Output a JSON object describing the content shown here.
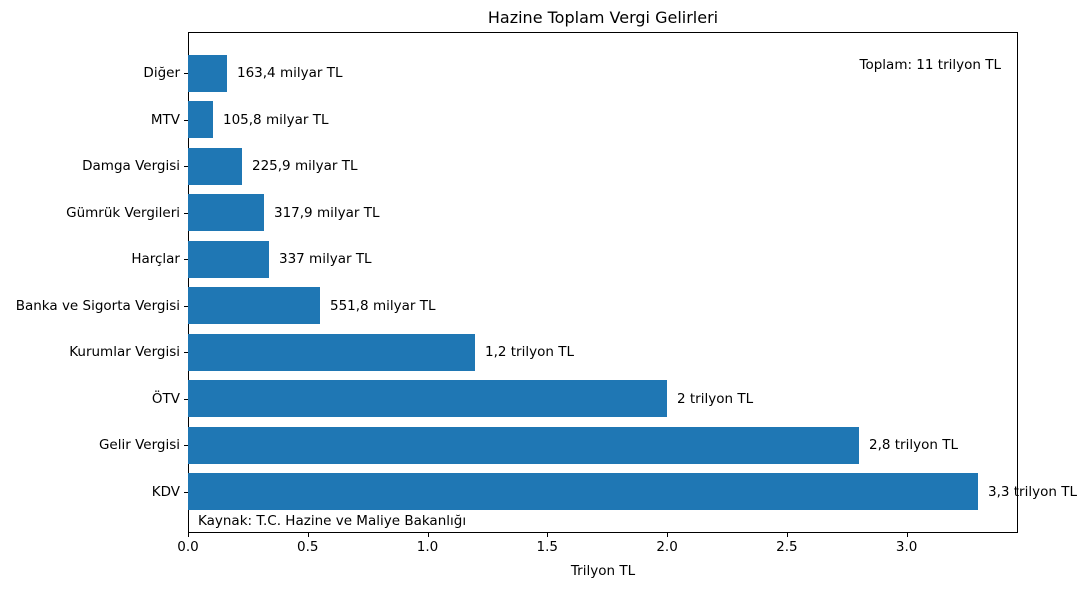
{
  "figure": {
    "title": "Hazine Toplam Vergi Gelirleri",
    "xlabel": "Trilyon TL",
    "annotation_total": "Toplam: 11 trilyon TL",
    "source_note": "Kaynak: T.C. Hazine ve Maliye Bakanlığı",
    "colors": {
      "bar": "#1f77b4",
      "axis": "#000000",
      "text": "#000000",
      "background": "#ffffff"
    }
  },
  "chart_data": {
    "type": "bar",
    "orientation": "horizontal",
    "title": "Hazine Toplam Vergi Gelirleri",
    "xlabel": "Trilyon TL",
    "ylabel": "",
    "grid": false,
    "legend": false,
    "bar_color": "#1f77b4",
    "categories": [
      "Diğer",
      "MTV",
      "Damga Vergisi",
      "Gümrük Vergileri",
      "Harçlar",
      "Banka ve Sigorta Vergisi",
      "Kurumlar Vergisi",
      "ÖTV",
      "Gelir Vergisi",
      "KDV"
    ],
    "values_trilyon_tl": [
      0.1634,
      0.1058,
      0.2259,
      0.3179,
      0.337,
      0.5518,
      1.2,
      2.0,
      2.8,
      3.3
    ],
    "bar_labels": [
      "163,4 milyar TL",
      "105,8 milyar TL",
      "225,9 milyar TL",
      "317,9 milyar TL",
      "337 milyar TL",
      "551,8 milyar TL",
      "1,2 trilyon TL",
      "2 trilyon TL",
      "2,8 trilyon TL",
      "3,3 trilyon TL"
    ],
    "total_annotation": "Toplam: 11 trilyon TL",
    "source_note": "Kaynak: T.C. Hazine ve Maliye Bakanlığı",
    "xlim": [
      0,
      3.465
    ],
    "xticks": [
      "0.0",
      "0.5",
      "1.0",
      "1.5",
      "2.0",
      "2.5",
      "3.0"
    ],
    "xtick_values": [
      0,
      0.5,
      1.0,
      1.5,
      2.0,
      2.5,
      3.0
    ]
  }
}
